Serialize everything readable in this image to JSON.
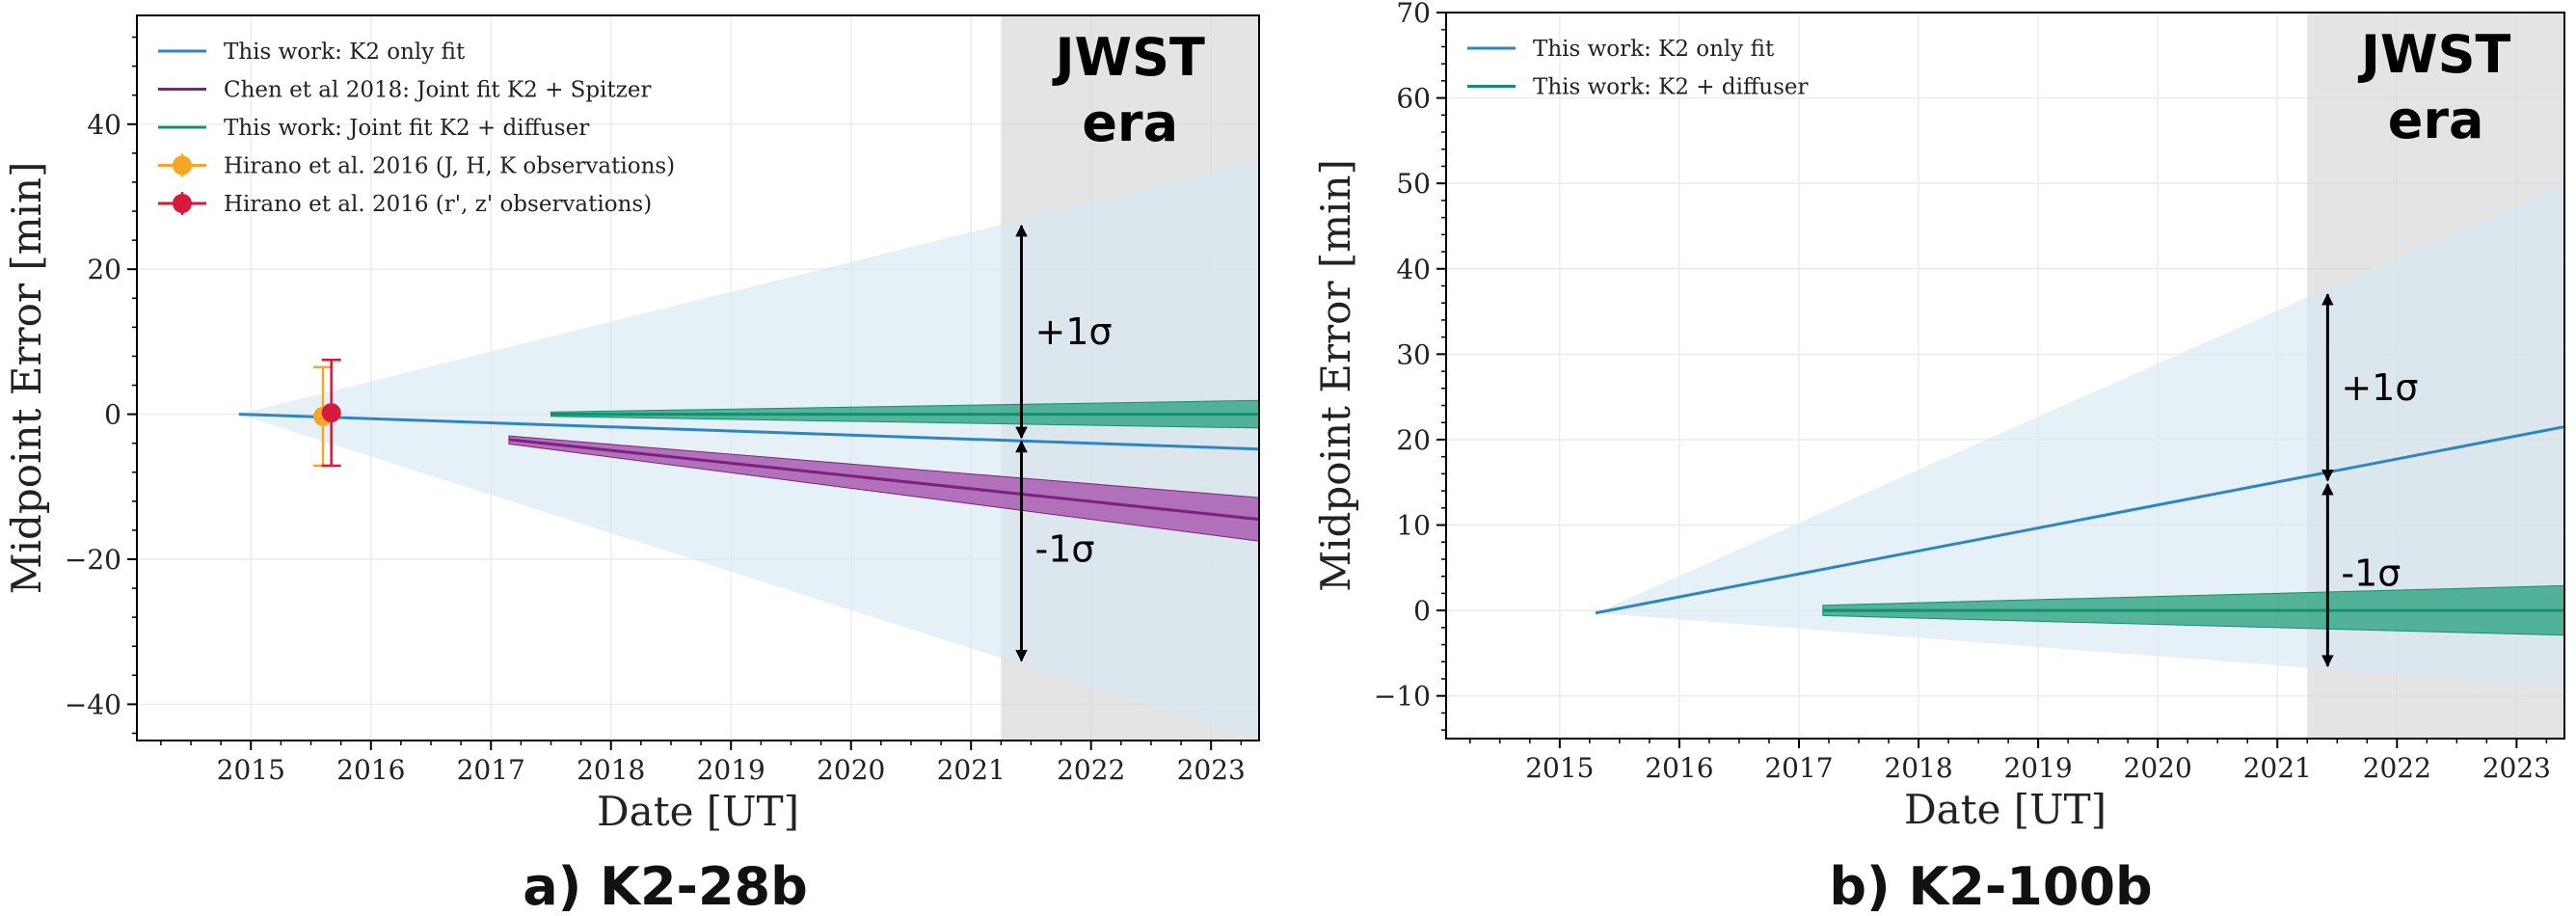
{
  "chart_data": [
    {
      "type": "line",
      "caption": "a) K2-28b",
      "xlabel": "Date [UT]",
      "ylabel": "Midpoint Error [min]",
      "xlim": [
        2014.05,
        2023.4
      ],
      "ylim": [
        -45,
        55
      ],
      "xticks": [
        2015,
        2016,
        2017,
        2018,
        2019,
        2020,
        2021,
        2022,
        2023
      ],
      "yticks": [
        -40,
        -20,
        0,
        20,
        40
      ],
      "grid": true,
      "legend_position": "top-left",
      "jwst_era": {
        "start": 2021.25,
        "label_line1": "JWST",
        "label_line2": "era"
      },
      "sigma_arrows": {
        "x": 2021.42,
        "top": 26,
        "mid": -3.5,
        "bottom": -34,
        "plus_label": "+1σ",
        "minus_label": "-1σ"
      },
      "series": [
        {
          "name": "This work: K2 only fit",
          "kind": "line_band",
          "color": "#2e86c1",
          "band_color": "#d6e6f2",
          "x": [
            2014.9,
            2023.4
          ],
          "y": [
            0.0,
            -4.8
          ],
          "band_upper": [
            0.0,
            35.0
          ],
          "band_lower": [
            0.0,
            -45.0
          ]
        },
        {
          "name": "Chen et al 2018: Joint fit K2 + Spitzer",
          "kind": "line_band",
          "color": "#7d2181",
          "band_color": "#a85cb0",
          "x": [
            2017.15,
            2023.4
          ],
          "y": [
            -3.5,
            -14.5
          ],
          "band_upper": [
            -3.0,
            -11.5
          ],
          "band_lower": [
            -4.1,
            -17.5
          ]
        },
        {
          "name": "This work: Joint fit K2 + diffuser",
          "kind": "line_band",
          "color": "#148f6e",
          "band_color": "#3aa889",
          "x": [
            2017.5,
            2023.4
          ],
          "y": [
            0.0,
            0.0
          ],
          "band_upper": [
            0.3,
            1.9
          ],
          "band_lower": [
            -0.3,
            -1.9
          ]
        },
        {
          "name": "Hirano et al. 2016 (J, H, K observations)",
          "kind": "errorbar",
          "color": "#f5a623",
          "x": [
            2015.6
          ],
          "y": [
            -0.3
          ],
          "yerr": [
            6.8
          ]
        },
        {
          "name": "Hirano et al. 2016 (r', z' observations)",
          "kind": "errorbar",
          "color": "#d7193b",
          "x": [
            2015.67
          ],
          "y": [
            0.2
          ],
          "yerr": [
            7.3
          ]
        }
      ]
    },
    {
      "type": "line",
      "caption": "b) K2-100b",
      "xlabel": "Date [UT]",
      "ylabel": "Midpoint Error [min]",
      "xlim": [
        2014.05,
        2023.4
      ],
      "ylim": [
        -15,
        70
      ],
      "xticks": [
        2015,
        2016,
        2017,
        2018,
        2019,
        2020,
        2021,
        2022,
        2023
      ],
      "yticks": [
        -10,
        0,
        10,
        20,
        30,
        40,
        50,
        60,
        70
      ],
      "grid": true,
      "legend_position": "top-left",
      "jwst_era": {
        "start": 2021.25,
        "label_line1": "JWST",
        "label_line2": "era"
      },
      "sigma_arrows": {
        "x": 2021.42,
        "top": 37,
        "mid": 15,
        "bottom": -6.5,
        "plus_label": "+1σ",
        "minus_label": "-1σ"
      },
      "series": [
        {
          "name": "This work: K2 only fit",
          "kind": "line_band",
          "color": "#2e86c1",
          "band_color": "#d6e6f2",
          "x": [
            2015.3,
            2023.4
          ],
          "y": [
            -0.3,
            21.5
          ],
          "band_upper": [
            -0.3,
            50.0
          ],
          "band_lower": [
            -0.3,
            -9.0
          ]
        },
        {
          "name": "This work: K2 + diffuser",
          "kind": "line_band",
          "color": "#148f6e",
          "band_color": "#3aa889",
          "x": [
            2017.2,
            2023.4
          ],
          "y": [
            0.0,
            0.0
          ],
          "band_upper": [
            0.6,
            2.9
          ],
          "band_lower": [
            -0.6,
            -2.9
          ]
        }
      ]
    }
  ]
}
